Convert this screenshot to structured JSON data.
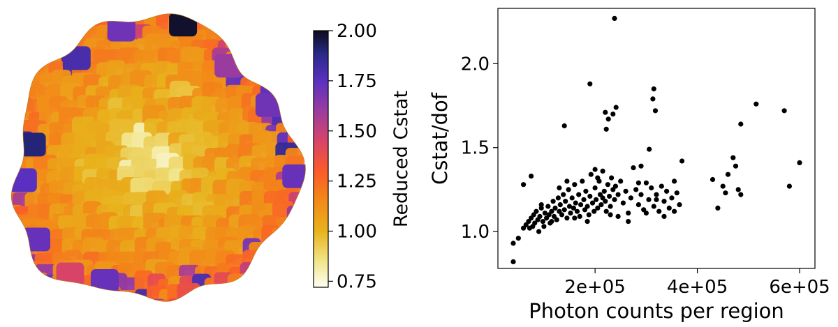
{
  "chart_data": [
    {
      "type": "heatmap",
      "colorbar": {
        "label": "Reduced Cstat",
        "range": [
          0.72,
          2.0
        ],
        "ticks": [
          {
            "value": 2.0,
            "label": "2.00"
          },
          {
            "value": 1.75,
            "label": "1.75"
          },
          {
            "value": 1.5,
            "label": "1.50"
          },
          {
            "value": 1.25,
            "label": "1.25"
          },
          {
            "value": 1.0,
            "label": "1.00"
          },
          {
            "value": 0.75,
            "label": "0.75"
          }
        ],
        "colors": [
          {
            "value": 0.72,
            "color": "#fffff2"
          },
          {
            "value": 0.85,
            "color": "#f1e58a"
          },
          {
            "value": 1.0,
            "color": "#e8b31c"
          },
          {
            "value": 1.15,
            "color": "#f28a18"
          },
          {
            "value": 1.3,
            "color": "#fb5b2a"
          },
          {
            "value": 1.45,
            "color": "#d84468"
          },
          {
            "value": 1.6,
            "color": "#9a3c9f"
          },
          {
            "value": 1.75,
            "color": "#5a30c0"
          },
          {
            "value": 1.88,
            "color": "#2a2a8a"
          },
          {
            "value": 2.0,
            "color": "#0c0c1c"
          }
        ]
      }
    },
    {
      "type": "scatter",
      "xlabel": "Photon counts per region",
      "ylabel": "Cstat/dof",
      "xlim": [
        10000,
        630000
      ],
      "ylim": [
        0.78,
        2.33
      ],
      "xticks": [
        {
          "value": 200000,
          "label": "2e+05"
        },
        {
          "value": 400000,
          "label": "4e+05"
        },
        {
          "value": 600000,
          "label": "6e+05"
        }
      ],
      "yticks": [
        {
          "value": 1.0,
          "label": "1.0"
        },
        {
          "value": 1.5,
          "label": "1.5"
        },
        {
          "value": 2.0,
          "label": "2.0"
        }
      ],
      "marker_color": "#000000",
      "points": [
        [
          40000,
          0.82
        ],
        [
          40000,
          0.93
        ],
        [
          50000,
          0.96
        ],
        [
          60000,
          1.02
        ],
        [
          65000,
          1.04
        ],
        [
          70000,
          1.06
        ],
        [
          72000,
          1.02
        ],
        [
          75000,
          1.08
        ],
        [
          78000,
          1.03
        ],
        [
          80000,
          1.1
        ],
        [
          82000,
          1.05
        ],
        [
          85000,
          1.12
        ],
        [
          88000,
          1.07
        ],
        [
          90000,
          1.0
        ],
        [
          92000,
          1.09
        ],
        [
          95000,
          1.14
        ],
        [
          98000,
          1.06
        ],
        [
          100000,
          1.03
        ],
        [
          102000,
          1.11
        ],
        [
          105000,
          1.08
        ],
        [
          108000,
          1.15
        ],
        [
          110000,
          1.1
        ],
        [
          112000,
          1.05
        ],
        [
          115000,
          1.12
        ],
        [
          118000,
          1.18
        ],
        [
          120000,
          1.09
        ],
        [
          122000,
          1.14
        ],
        [
          125000,
          1.07
        ],
        [
          128000,
          1.2
        ],
        [
          130000,
          1.12
        ],
        [
          132000,
          1.16
        ],
        [
          135000,
          1.1
        ],
        [
          138000,
          1.22
        ],
        [
          140000,
          1.13
        ],
        [
          142000,
          1.18
        ],
        [
          145000,
          1.08
        ],
        [
          148000,
          1.25
        ],
        [
          150000,
          1.15
        ],
        [
          152000,
          1.11
        ],
        [
          155000,
          1.2
        ],
        [
          158000,
          1.14
        ],
        [
          160000,
          1.28
        ],
        [
          162000,
          1.17
        ],
        [
          165000,
          1.12
        ],
        [
          168000,
          1.22
        ],
        [
          170000,
          1.09
        ],
        [
          172000,
          1.16
        ],
        [
          175000,
          1.3
        ],
        [
          178000,
          1.19
        ],
        [
          180000,
          1.13
        ],
        [
          182000,
          1.24
        ],
        [
          185000,
          1.15
        ],
        [
          188000,
          1.1
        ],
        [
          190000,
          1.21
        ],
        [
          192000,
          1.34
        ],
        [
          195000,
          1.17
        ],
        [
          198000,
          1.12
        ],
        [
          200000,
          1.26
        ],
        [
          202000,
          1.19
        ],
        [
          205000,
          1.14
        ],
        [
          208000,
          1.3
        ],
        [
          210000,
          1.22
        ],
        [
          212000,
          1.16
        ],
        [
          215000,
          1.36
        ],
        [
          218000,
          1.24
        ],
        [
          220000,
          1.18
        ],
        [
          222000,
          1.12
        ],
        [
          225000,
          1.28
        ],
        [
          228000,
          1.21
        ],
        [
          230000,
          1.15
        ],
        [
          232000,
          1.32
        ],
        [
          235000,
          1.25
        ],
        [
          238000,
          1.19
        ],
        [
          240000,
          1.27
        ],
        [
          245000,
          1.22
        ],
        [
          250000,
          1.3
        ],
        [
          255000,
          1.17
        ],
        [
          260000,
          1.24
        ],
        [
          265000,
          1.11
        ],
        [
          270000,
          1.2
        ],
        [
          275000,
          1.38
        ],
        [
          280000,
          1.25
        ],
        [
          285000,
          1.16
        ],
        [
          290000,
          1.22
        ],
        [
          295000,
          1.13
        ],
        [
          300000,
          1.29
        ],
        [
          305000,
          1.19
        ],
        [
          310000,
          1.26
        ],
        [
          315000,
          1.15
        ],
        [
          320000,
          1.22
        ],
        [
          325000,
          1.12
        ],
        [
          330000,
          1.27
        ],
        [
          335000,
          1.18
        ],
        [
          340000,
          1.24
        ],
        [
          345000,
          1.14
        ],
        [
          350000,
          1.2
        ],
        [
          355000,
          1.3
        ],
        [
          360000,
          1.23
        ],
        [
          365000,
          1.16
        ],
        [
          370000,
          1.42
        ],
        [
          60000,
          1.28
        ],
        [
          75000,
          1.33
        ],
        [
          95000,
          1.16
        ],
        [
          115000,
          1.06
        ],
        [
          130000,
          1.26
        ],
        [
          145000,
          1.3
        ],
        [
          160000,
          1.08
        ],
        [
          185000,
          1.06
        ],
        [
          200000,
          1.37
        ],
        [
          215000,
          1.2
        ],
        [
          230000,
          1.1
        ],
        [
          245000,
          1.09
        ],
        [
          265000,
          1.06
        ],
        [
          285000,
          1.29
        ],
        [
          300000,
          1.11
        ],
        [
          320000,
          1.19
        ],
        [
          335000,
          1.09
        ],
        [
          355000,
          1.12
        ],
        [
          140000,
          1.63
        ],
        [
          190000,
          1.88
        ],
        [
          205000,
          1.32
        ],
        [
          220000,
          1.71
        ],
        [
          222000,
          1.61
        ],
        [
          226000,
          1.67
        ],
        [
          235000,
          1.7
        ],
        [
          238000,
          2.27
        ],
        [
          241000,
          1.74
        ],
        [
          290000,
          1.39
        ],
        [
          306000,
          1.49
        ],
        [
          313000,
          1.79
        ],
        [
          315000,
          1.85
        ],
        [
          318000,
          1.72
        ],
        [
          430000,
          1.31
        ],
        [
          440000,
          1.14
        ],
        [
          450000,
          1.27
        ],
        [
          455000,
          1.23
        ],
        [
          460000,
          1.34
        ],
        [
          470000,
          1.44
        ],
        [
          475000,
          1.39
        ],
        [
          480000,
          1.25
        ],
        [
          485000,
          1.64
        ],
        [
          485000,
          1.22
        ],
        [
          515000,
          1.76
        ],
        [
          570000,
          1.72
        ],
        [
          580000,
          1.27
        ],
        [
          600000,
          1.41
        ]
      ]
    }
  ]
}
